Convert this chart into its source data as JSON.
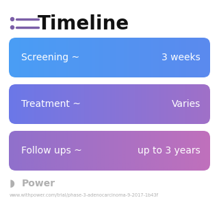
{
  "title": "Timeline",
  "title_fontsize": 20,
  "title_color": "#111111",
  "title_icon_color": "#7B5EA7",
  "background_color": "#ffffff",
  "rows": [
    {
      "label": "Screening ~",
      "value": "3 weeks",
      "color_left": "#4A9EF5",
      "color_right": "#5B8AEE"
    },
    {
      "label": "Treatment ~",
      "value": "Varies",
      "color_left": "#6B78E8",
      "color_right": "#A070C8"
    },
    {
      "label": "Follow ups ~",
      "value": "up to 3 years",
      "color_left": "#9070CC",
      "color_right": "#C070BC"
    }
  ],
  "footer_text": "Power",
  "footer_color": "#b0b0b0",
  "url_text": "www.withpower.com/trial/phase-3-adenocarcinoma-9-2017-1b43f",
  "url_color": "#b0b0b0",
  "row_text_color": "#ffffff",
  "row_label_fontsize": 10,
  "row_value_fontsize": 10,
  "fig_width": 3.2,
  "fig_height": 3.27,
  "fig_dpi": 100
}
